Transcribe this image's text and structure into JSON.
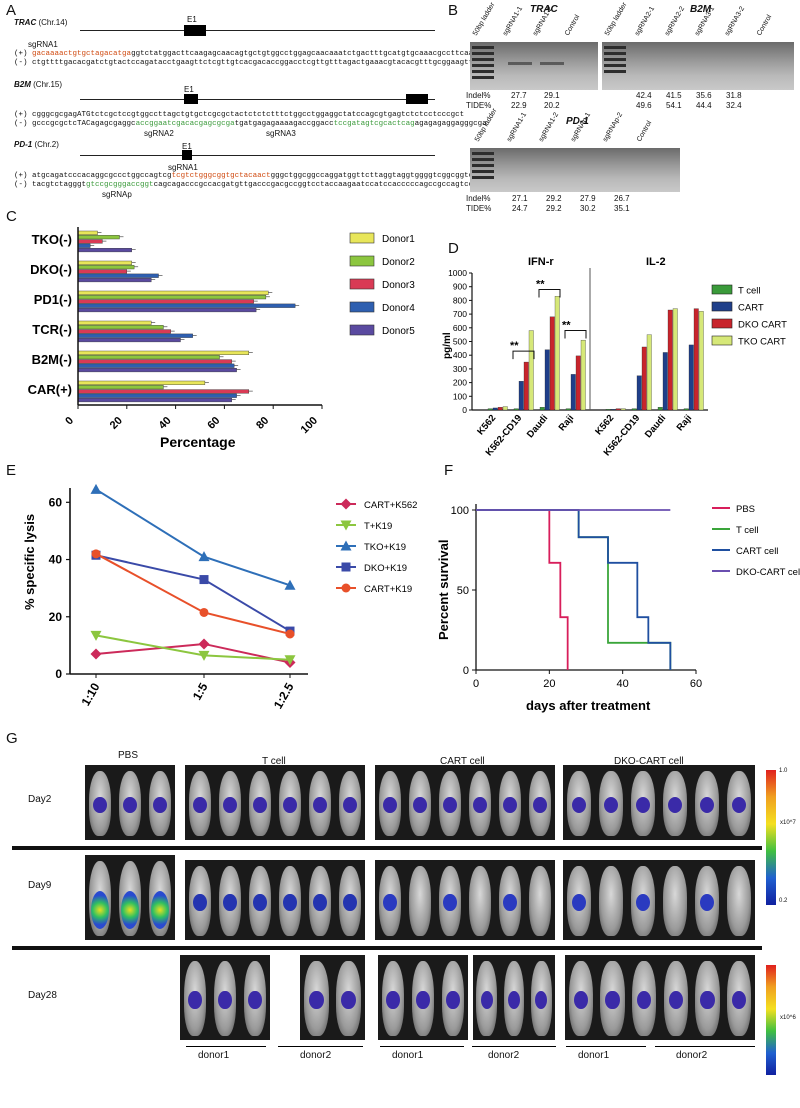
{
  "panels": {
    "A": "A",
    "B": "B",
    "C": "C",
    "D": "D",
    "E": "E",
    "F": "F",
    "G": "G"
  },
  "panelA": {
    "trac": {
      "title": "TRAC",
      "chr": "(Chr.14)",
      "exon": "E1",
      "sg": "sgRNA1",
      "plus": "(+)",
      "minus": "(-)",
      "plus_hl": "gacaaaactgtgctagacatga",
      "plus_rest": "ggtctatggacttcaagagcaacagtgctgtggcctggagcaacaaatctgactttgcatgtgcaaacgccttcaaca",
      "minus_seq": "ctgttttgacacgatctgtactccagatacctgaagttctcgttgtcacgacaccggacctcgttgtttagactgaaacgtacacgtttgcggaagttgtt"
    },
    "b2m": {
      "title": "B2M",
      "chr": "(Chr.15)",
      "exon": "E1",
      "sg2": "sgRNA2",
      "sg3": "sgRNA3",
      "plus": "(+)",
      "minus": "(-)",
      "plus_seq": "cgggcgcgagATGtctcgctccgtggccttagctgtgctcgcgctactctctctttctggcctggaggctatccagcgtgagtctctcctcccgct",
      "minus_a": "gcccgcgctcTACagagcgaggc",
      "minus_g1": "accggaatcgacacgagcgcga",
      "minus_b": "tgatgagagaaaagaccggacc",
      "minus_g2": "tccgatagtcgcactcag",
      "minus_c": "agagagaggagggcga"
    },
    "pd1": {
      "title": "PD-1",
      "chr": "(Chr.2)",
      "exon": "E1",
      "sg": "sgRNAp",
      "plus": "(+)",
      "minus": "(-)",
      "plus_a": "atgcagatcccacaggcgccctggccagtcg",
      "plus_hl": "tcgtctgggcggtgctacaact",
      "plus_b": "gggctggcggccaggatggttcttaggtaggtggggtcggcggtcaggtgtc",
      "minus_a": "tacgtctagggt",
      "minus_g": "gtccgcgggaccggt",
      "minus_b": "cagcagacccgccacgatgttgacccgacgccggtcctaccaagaatccatccacccccagccgccagtccacag"
    }
  },
  "panelB": {
    "trac": {
      "title": "TRAC",
      "lanes": [
        "50bp ladder",
        "sgRNA1-1",
        "sgRNA1-2",
        "Control"
      ],
      "indel": [
        "27.7",
        "29.1"
      ],
      "tide": [
        "22.9",
        "20.2"
      ]
    },
    "b2m": {
      "title": "B2M",
      "lanes": [
        "50bp ladder",
        "sgRNA2-1",
        "sgRNA2-2",
        "sgRNA3-1",
        "sgRNA3-2",
        "Control"
      ],
      "indel": [
        "42.4",
        "41.5",
        "35.6",
        "31.8"
      ],
      "tide": [
        "49.6",
        "54.1",
        "44.4",
        "32.4"
      ]
    },
    "pd1": {
      "title": "PD-1",
      "lanes": [
        "50bp ladder",
        "sgRNA1-1",
        "sgRNA1-2",
        "sgRNAp-1",
        "sgRNAp-2",
        "Control"
      ],
      "indel": [
        "27.1",
        "29.2",
        "27.9",
        "26.7"
      ],
      "tide": [
        "24.7",
        "29.2",
        "30.2",
        "35.1"
      ]
    },
    "indel_label": "Indel%",
    "tide_label": "TIDE%"
  },
  "chart_data": [
    {
      "id": "C",
      "type": "bar",
      "orientation": "horizontal",
      "categories": [
        "TKO(-)",
        "DKO(-)",
        "PD1(-)",
        "TCR(-)",
        "B2M(-)",
        "CAR(+)"
      ],
      "series": [
        {
          "name": "Donor1",
          "color": "#e8e65a",
          "values": [
            8,
            22,
            78,
            30,
            70,
            52
          ]
        },
        {
          "name": "Donor2",
          "color": "#8cc63f",
          "values": [
            17,
            23,
            77,
            35,
            58,
            35
          ]
        },
        {
          "name": "Donor3",
          "color": "#d93a55",
          "values": [
            10,
            20,
            72,
            38,
            63,
            70
          ]
        },
        {
          "name": "Donor4",
          "color": "#2e5fb0",
          "values": [
            5,
            33,
            89,
            47,
            64,
            65
          ]
        },
        {
          "name": "Donor5",
          "color": "#5a4aa0",
          "values": [
            22,
            30,
            73,
            42,
            65,
            63
          ]
        }
      ],
      "xlabel": "Percentage",
      "xlim": [
        0,
        100
      ],
      "xticks": [
        "0",
        "20",
        "40",
        "60",
        "80",
        "100"
      ]
    },
    {
      "id": "D",
      "type": "bar",
      "ylabel": "pg/ml",
      "ylim": [
        0,
        1000
      ],
      "yticks": [
        "0",
        "100",
        "200",
        "300",
        "400",
        "500",
        "600",
        "700",
        "800",
        "900",
        "1000"
      ],
      "groups": [
        {
          "title": "IFN-r",
          "categories": [
            "K562",
            "K562-CD19",
            "Daudi",
            "Raji"
          ],
          "values": {
            "T cell": [
              10,
              10,
              20,
              10
            ],
            "CART": [
              15,
              210,
              440,
              260
            ],
            "DKO CART": [
              20,
              350,
              680,
              395
            ],
            "TKO CART": [
              25,
              580,
              830,
              510
            ]
          }
        },
        {
          "title": "IL-2",
          "categories": [
            "K562",
            "K562-CD19",
            "Daudi",
            "Raji"
          ],
          "values": {
            "T cell": [
              5,
              10,
              20,
              10
            ],
            "CART": [
              5,
              250,
              420,
              475
            ],
            "DKO CART": [
              10,
              460,
              730,
              740
            ],
            "TKO CART": [
              10,
              550,
              740,
              720
            ]
          }
        }
      ],
      "series": [
        {
          "name": "T cell",
          "color": "#3a9a3a"
        },
        {
          "name": "CART",
          "color": "#1f3f8a"
        },
        {
          "name": "DKO CART",
          "color": "#c8242c"
        },
        {
          "name": "TKO CART",
          "color": "#d6e878"
        }
      ],
      "sig": "**"
    },
    {
      "id": "E",
      "type": "line",
      "ylabel": "% specific lysis",
      "ylim": [
        0,
        65
      ],
      "yticks": [
        "0",
        "20",
        "40",
        "60"
      ],
      "x": [
        "1:10",
        "1:5",
        "1:2.5"
      ],
      "series": [
        {
          "name": "CART+K562",
          "color": "#cc2a5a",
          "marker": "diamond",
          "values": [
            7,
            10.5,
            4
          ]
        },
        {
          "name": "T+K19",
          "color": "#8cc63f",
          "marker": "tri-down",
          "values": [
            13.5,
            6.5,
            5
          ]
        },
        {
          "name": "TKO+K19",
          "color": "#2e6fb8",
          "marker": "triangle",
          "values": [
            64.5,
            41,
            31
          ]
        },
        {
          "name": "DKO+K19",
          "color": "#3a4aa8",
          "marker": "square",
          "values": [
            41.5,
            33,
            15
          ]
        },
        {
          "name": "CART+K19",
          "color": "#e8502a",
          "marker": "circle",
          "values": [
            42,
            21.5,
            14
          ]
        }
      ]
    },
    {
      "id": "F",
      "type": "line",
      "step": true,
      "ylabel": "Percent survival",
      "xlabel": "days after treatment",
      "xlim": [
        0,
        60
      ],
      "ylim": [
        0,
        100
      ],
      "xticks": [
        "0",
        "20",
        "40",
        "60"
      ],
      "yticks": [
        "0",
        "50",
        "100"
      ],
      "series": [
        {
          "name": "PBS",
          "color": "#d81e5b",
          "points": [
            [
              0,
              100
            ],
            [
              20,
              100
            ],
            [
              20,
              67
            ],
            [
              23,
              67
            ],
            [
              23,
              33
            ],
            [
              25,
              33
            ],
            [
              25,
              0
            ]
          ]
        },
        {
          "name": "T cell",
          "color": "#3aa53a",
          "points": [
            [
              0,
              100
            ],
            [
              28,
              100
            ],
            [
              28,
              83
            ],
            [
              36,
              83
            ],
            [
              36,
              17
            ],
            [
              53,
              17
            ],
            [
              53,
              0
            ]
          ]
        },
        {
          "name": "CART cell",
          "color": "#1f4fa0",
          "points": [
            [
              0,
              100
            ],
            [
              28,
              100
            ],
            [
              28,
              83
            ],
            [
              36,
              83
            ],
            [
              36,
              67
            ],
            [
              44,
              67
            ],
            [
              44,
              33
            ],
            [
              47,
              33
            ],
            [
              47,
              17
            ],
            [
              53,
              17
            ],
            [
              53,
              0
            ]
          ]
        },
        {
          "name": "DKO-CART cell",
          "color": "#6a4fb0",
          "points": [
            [
              0,
              100
            ],
            [
              53,
              100
            ]
          ]
        }
      ]
    }
  ],
  "panelG": {
    "groups": [
      "PBS",
      "T cell",
      "CART cell",
      "DKO-CART cell"
    ],
    "days": [
      "Day2",
      "Day9",
      "Day28"
    ],
    "donors": [
      "donor1",
      "donor2",
      "donor1",
      "donor2",
      "donor1",
      "donor2"
    ],
    "scale_exp_top": "x10^7",
    "scale_exp_bottom": "x10^6",
    "scale_top_label": "1.0",
    "scale_bottom_label": "0.2"
  }
}
